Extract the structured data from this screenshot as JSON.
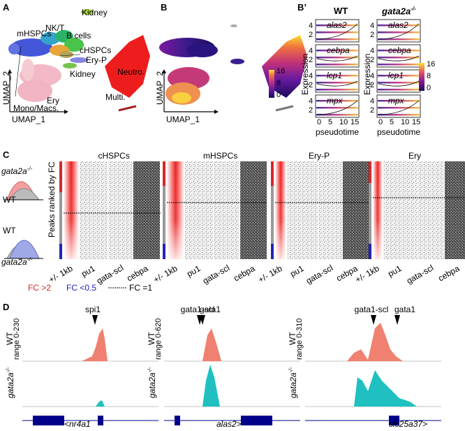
{
  "panel_labels": {
    "a": "A",
    "b": "B",
    "bp": "B’",
    "c": "C",
    "d": "D"
  },
  "panel_a": {
    "axis_x": "UMAP_1",
    "axis_y": "UMAP_2",
    "clusters": [
      "Kidney",
      "mHSPCs",
      "NK/T",
      "B cells",
      "cHSPCs",
      "Ery-P",
      "Neutro.",
      "Kidney",
      "Ery",
      "Multi.",
      "Mono/Macs."
    ]
  },
  "panel_b": {
    "axis_x": "UMAP_1",
    "axis_y": "UMAP_2",
    "colorbar_ticks": [
      "16",
      "8",
      "0"
    ]
  },
  "panel_bp": {
    "col_wt": "WT",
    "col_mut": "gata2a",
    "col_mut_sup": "-/-",
    "genes": [
      "alas2",
      "cebpa",
      "lcp1",
      "mpx"
    ],
    "y_ticks": [
      "4",
      "2"
    ],
    "x_ticks": [
      "0",
      "5",
      "10",
      "15"
    ],
    "ylabel": "Expression",
    "xlabel": "pseudotime",
    "colorbar_ticks": [
      "16",
      "8",
      "0"
    ]
  },
  "panel_c": {
    "illus": {
      "mut": "gata2a",
      "mut_sup": "-/-",
      "wt": "WT"
    },
    "ylabel": "Peaks ranked by FC",
    "groups": [
      {
        "title": "cHSPCs",
        "cols": [
          "+/- 1kb",
          "pu1",
          "gata-scl",
          "cebpa"
        ]
      },
      {
        "title": "mHSPCs",
        "cols": [
          "+/- 1kb",
          "pu1",
          "gata-scl",
          "cebpa"
        ]
      },
      {
        "title": "Ery-P",
        "cols": [
          "+/- 1kb",
          "pu1",
          "gata-scl",
          "cebpa"
        ]
      },
      {
        "title": "Ery",
        "cols": [
          "+/- 1kb",
          "pu1",
          "gata-scl",
          "cebpa"
        ]
      }
    ],
    "legend": {
      "up": "FC >2",
      "down": "FC <0.5",
      "eq": "FC =1"
    },
    "colors": {
      "up": "#d62728",
      "down": "#2323b8",
      "eq": "#000000"
    }
  },
  "panel_d": {
    "tracks": [
      {
        "wt_range": "range 0-230",
        "motifs": [
          "spi1"
        ],
        "gene": "<nr4a1"
      },
      {
        "wt_range": "range 0-620",
        "motifs": [
          "gata1-scl",
          "gata1"
        ],
        "gene": "alas2>"
      },
      {
        "wt_range": "range 0-310",
        "motifs": [
          "gata1-scl",
          "gata1"
        ],
        "gene": "slc25a37>"
      }
    ],
    "wt_label": "WT",
    "mut_label": "gata2a",
    "mut_sup": "-/-",
    "colors": {
      "wt": "#f08070",
      "mut": "#20c0c0",
      "gene": "#00008b"
    }
  }
}
